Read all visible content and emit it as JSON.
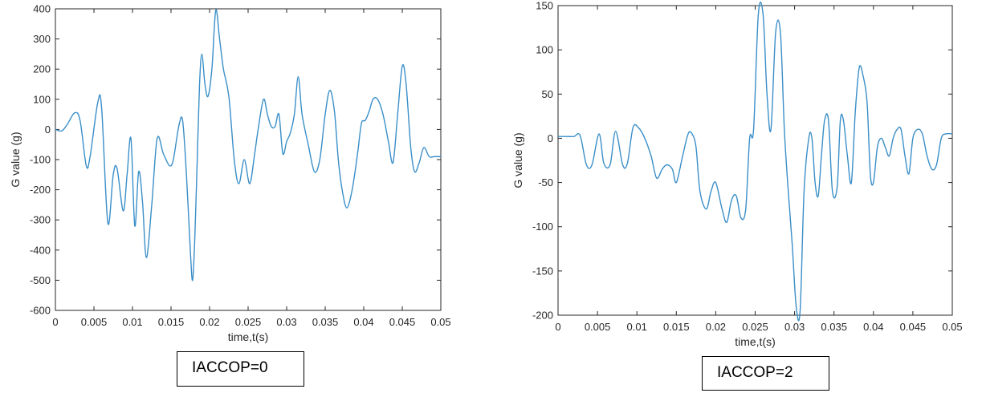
{
  "chart_data": [
    {
      "type": "line",
      "xlabel": "time,t(s)",
      "ylabel": "G value (g)",
      "xlim": [
        0,
        0.05
      ],
      "ylim": [
        -600,
        400
      ],
      "xticks": [
        "0",
        "0.005",
        "0.01",
        "0.015",
        "0.02",
        "0.025",
        "0.03",
        "0.035",
        "0.04",
        "0.045",
        "0.05"
      ],
      "yticks": [
        "-600",
        "-500",
        "-400",
        "-300",
        "-200",
        "-100",
        "0",
        "100",
        "200",
        "300",
        "400"
      ],
      "grid": false,
      "color": "#3a8fc8",
      "caption": "IACCOP=0",
      "series": [
        {
          "x": [
            0,
            0.0008,
            0.0015,
            0.0025,
            0.0032,
            0.004,
            0.0045,
            0.0055,
            0.006,
            0.0068,
            0.0075,
            0.008,
            0.0088,
            0.0093,
            0.0098,
            0.0103,
            0.0108,
            0.0113,
            0.0118,
            0.0125,
            0.0132,
            0.014,
            0.0148,
            0.0153,
            0.016,
            0.0165,
            0.017,
            0.0175,
            0.0178,
            0.0181,
            0.0184,
            0.0187,
            0.019,
            0.0194,
            0.0198,
            0.0203,
            0.0208,
            0.0213,
            0.0218,
            0.0225,
            0.0232,
            0.0238,
            0.0245,
            0.0252,
            0.0258,
            0.0263,
            0.027,
            0.0275,
            0.028,
            0.0285,
            0.029,
            0.0295,
            0.03,
            0.0305,
            0.031,
            0.0315,
            0.032,
            0.0328,
            0.0336,
            0.0343,
            0.035,
            0.0356,
            0.0362,
            0.0367,
            0.0372,
            0.0378,
            0.0385,
            0.0392,
            0.0397,
            0.0402,
            0.0407,
            0.0412,
            0.0418,
            0.0425,
            0.0432,
            0.0438,
            0.0444,
            0.045,
            0.0455,
            0.0461,
            0.0466,
            0.0472,
            0.0478,
            0.0485,
            0.0492,
            0.05
          ],
          "y": [
            0,
            -5,
            15,
            55,
            30,
            -120,
            -90,
            90,
            70,
            -310,
            -150,
            -130,
            -270,
            -150,
            -30,
            -320,
            -140,
            -240,
            -425,
            -250,
            -30,
            -80,
            -120,
            -100,
            10,
            30,
            -150,
            -400,
            -500,
            -350,
            -100,
            150,
            250,
            150,
            110,
            200,
            395,
            300,
            200,
            110,
            -100,
            -180,
            -100,
            -180,
            -90,
            0,
            100,
            50,
            10,
            10,
            50,
            -80,
            -40,
            -10,
            50,
            175,
            50,
            -50,
            -140,
            -100,
            50,
            130,
            60,
            -100,
            -200,
            -260,
            -200,
            -80,
            20,
            30,
            60,
            100,
            100,
            50,
            -40,
            -110,
            50,
            210,
            150,
            -60,
            -140,
            -110,
            -60,
            -90,
            -90,
            -90
          ]
        }
      ]
    },
    {
      "type": "line",
      "xlabel": "time,t(s)",
      "ylabel": "G value (g)",
      "xlim": [
        0,
        0.05
      ],
      "ylim": [
        -200,
        150
      ],
      "xticks": [
        "0",
        "0.005",
        "0.01",
        "0.015",
        "0.02",
        "0.025",
        "0.03",
        "0.035",
        "0.04",
        "0.045",
        "0.05"
      ],
      "yticks": [
        "-200",
        "-150",
        "-100",
        "-50",
        "0",
        "50",
        "100",
        "150"
      ],
      "grid": false,
      "color": "#3a8fc8",
      "caption": "IACCOP=2",
      "series": [
        {
          "x": [
            0,
            0.001,
            0.002,
            0.0028,
            0.0036,
            0.0043,
            0.0052,
            0.0058,
            0.0066,
            0.0073,
            0.0082,
            0.0088,
            0.0095,
            0.0102,
            0.011,
            0.0118,
            0.0125,
            0.0132,
            0.0138,
            0.0145,
            0.015,
            0.0158,
            0.0165,
            0.017,
            0.0175,
            0.018,
            0.0188,
            0.0194,
            0.02,
            0.0208,
            0.0214,
            0.022,
            0.0226,
            0.0232,
            0.0238,
            0.0243,
            0.0248,
            0.0254,
            0.026,
            0.0265,
            0.027,
            0.0276,
            0.0282,
            0.0287,
            0.0292,
            0.0297,
            0.0302,
            0.0307,
            0.0312,
            0.0318,
            0.0322,
            0.0326,
            0.033,
            0.0334,
            0.0338,
            0.0343,
            0.0348,
            0.0354,
            0.0358,
            0.0362,
            0.0367,
            0.0372,
            0.0377,
            0.0382,
            0.0387,
            0.0392,
            0.0396,
            0.04,
            0.0405,
            0.041,
            0.0415,
            0.042,
            0.0425,
            0.043,
            0.0435,
            0.044,
            0.0445,
            0.045,
            0.0456,
            0.0462,
            0.0468,
            0.0474,
            0.048,
            0.0486,
            0.0492,
            0.05
          ],
          "y": [
            2,
            2,
            2,
            3,
            -30,
            -30,
            5,
            -28,
            -30,
            8,
            -30,
            -28,
            12,
            12,
            0,
            -20,
            -45,
            -35,
            -30,
            -35,
            -50,
            -20,
            5,
            5,
            -10,
            -60,
            -80,
            -60,
            -50,
            -80,
            -95,
            -70,
            -65,
            -90,
            -80,
            0,
            10,
            140,
            140,
            50,
            10,
            120,
            120,
            10,
            -60,
            -120,
            -190,
            -195,
            -60,
            0,
            0,
            -50,
            -65,
            -20,
            20,
            20,
            -60,
            -55,
            20,
            20,
            -20,
            -50,
            30,
            80,
            70,
            40,
            -40,
            -50,
            -10,
            0,
            -10,
            -20,
            0,
            10,
            10,
            -20,
            -40,
            0,
            10,
            5,
            -20,
            -35,
            -30,
            0,
            5,
            5
          ]
        }
      ]
    }
  ]
}
